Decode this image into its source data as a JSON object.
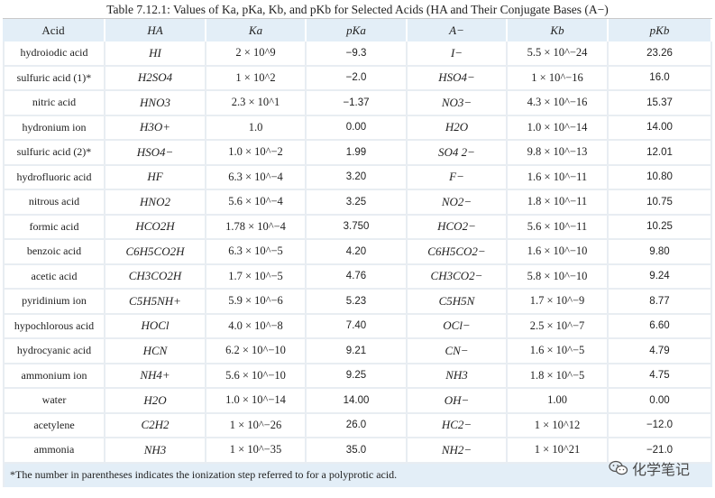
{
  "caption": "Table 7.12.1: Values of Ka, pKa, Kb, and pKb for Selected Acids (HA and Their Conjugate Bases (A−)",
  "headers": [
    "Acid",
    "HA",
    "Ka",
    "pKa",
    "A−",
    "Kb",
    "pKb"
  ],
  "rows": [
    [
      "hydroiodic acid",
      "HI",
      "2 × 10^9",
      "−9.3",
      "I−",
      "5.5 × 10^−24",
      "23.26"
    ],
    [
      "sulfuric acid (1)*",
      "H2SO4",
      "1 × 10^2",
      "−2.0",
      "HSO4−",
      "1 × 10^−16",
      "16.0"
    ],
    [
      "nitric acid",
      "HNO3",
      "2.3 × 10^1",
      "−1.37",
      "NO3−",
      "4.3 × 10^−16",
      "15.37"
    ],
    [
      "hydronium ion",
      "H3O+",
      "1.0",
      "0.00",
      "H2O",
      "1.0 × 10^−14",
      "14.00"
    ],
    [
      "sulfuric acid (2)*",
      "HSO4−",
      "1.0 × 10^−2",
      "1.99",
      "SO4 2−",
      "9.8 × 10^−13",
      "12.01"
    ],
    [
      "hydrofluoric acid",
      "HF",
      "6.3 × 10^−4",
      "3.20",
      "F−",
      "1.6 × 10^−11",
      "10.80"
    ],
    [
      "nitrous acid",
      "HNO2",
      "5.6 × 10^−4",
      "3.25",
      "NO2−",
      "1.8 × 10^−11",
      "10.75"
    ],
    [
      "formic acid",
      "HCO2H",
      "1.78 × 10^−4",
      "3.750",
      "HCO2−",
      "5.6 × 10^−11",
      "10.25"
    ],
    [
      "benzoic acid",
      "C6H5CO2H",
      "6.3 × 10^−5",
      "4.20",
      "C6H5CO2−",
      "1.6 × 10^−10",
      "9.80"
    ],
    [
      "acetic acid",
      "CH3CO2H",
      "1.7 × 10^−5",
      "4.76",
      "CH3CO2−",
      "5.8 × 10^−10",
      "9.24"
    ],
    [
      "pyridinium ion",
      "C5H5NH+",
      "5.9 × 10^−6",
      "5.23",
      "C5H5N",
      "1.7 × 10^−9",
      "8.77"
    ],
    [
      "hypochlorous acid",
      "HOCl",
      "4.0 × 10^−8",
      "7.40",
      "OCl−",
      "2.5 × 10^−7",
      "6.60"
    ],
    [
      "hydrocyanic acid",
      "HCN",
      "6.2 × 10^−10",
      "9.21",
      "CN−",
      "1.6 × 10^−5",
      "4.79"
    ],
    [
      "ammonium ion",
      "NH4+",
      "5.6 × 10^−10",
      "9.25",
      "NH3",
      "1.8 × 10^−5",
      "4.75"
    ],
    [
      "water",
      "H2O",
      "1.0 × 10^−14",
      "14.00",
      "OH−",
      "1.00",
      "0.00"
    ],
    [
      "acetylene",
      "C2H2",
      "1 × 10^−26",
      "26.0",
      "HC2−",
      "1 × 10^12",
      "−12.0"
    ],
    [
      "ammonia",
      "NH3",
      "1 × 10^−35",
      "35.0",
      "NH2−",
      "1 × 10^21",
      "−21.0"
    ]
  ],
  "footnote": "*The number in parentheses indicates the ionization step referred to for a polyprotic acid.",
  "watermark": "化学笔记",
  "watermark_icon": "wechat-icon"
}
